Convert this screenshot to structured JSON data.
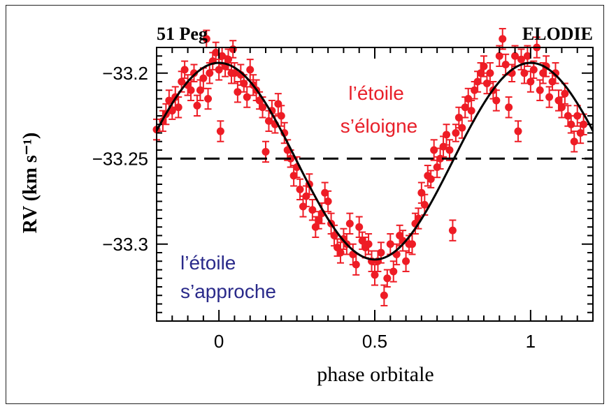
{
  "chart_data": {
    "type": "scatter",
    "title_left": "51 Peg",
    "title_right": "ELODIE",
    "xlabel": "phase orbitale",
    "ylabel": "RV (km s⁻¹)",
    "xlim": [
      -0.2,
      1.2
    ],
    "ylim": [
      -33.345,
      -33.185
    ],
    "x_ticks": [
      0,
      0.5,
      1
    ],
    "x_tick_labels": [
      "0",
      "0.5",
      "1"
    ],
    "y_ticks": [
      -33.2,
      -33.25,
      -33.3
    ],
    "y_tick_labels": [
      "−33.2",
      "−33.25",
      "−33.3"
    ],
    "reference_line": {
      "y": -33.25,
      "style": "dashed"
    },
    "fit": {
      "type": "sinusoid",
      "mean": -33.2515,
      "amplitude": 0.0575,
      "phase_of_max": 0.0,
      "color": "#000000"
    },
    "annotations": [
      {
        "text_lines": [
          "l’étoile",
          "s’éloigne"
        ],
        "color": "#e8202a"
      },
      {
        "text_lines": [
          "l’étoile",
          "s’approche"
        ],
        "color": "#2a2a8a"
      }
    ],
    "marker_color": "#ee1c25",
    "points": [
      [
        -0.2,
        -33.233,
        0.006
      ],
      [
        -0.18,
        -33.228,
        0.006
      ],
      [
        -0.17,
        -33.224,
        0.006
      ],
      [
        -0.16,
        -33.216,
        0.006
      ],
      [
        -0.15,
        -33.222,
        0.005
      ],
      [
        -0.14,
        -33.214,
        0.006
      ],
      [
        -0.13,
        -33.22,
        0.006
      ],
      [
        -0.12,
        -33.205,
        0.006
      ],
      [
        -0.11,
        -33.198,
        0.005
      ],
      [
        -0.1,
        -33.207,
        0.006
      ],
      [
        -0.09,
        -33.21,
        0.006
      ],
      [
        -0.08,
        -33.2,
        0.005
      ],
      [
        -0.07,
        -33.219,
        0.006
      ],
      [
        -0.06,
        -33.21,
        0.006
      ],
      [
        -0.05,
        -33.203,
        0.006
      ],
      [
        -0.04,
        -33.18,
        0.005
      ],
      [
        -0.035,
        -33.215,
        0.006
      ],
      [
        -0.03,
        -33.2,
        0.006
      ],
      [
        -0.02,
        -33.193,
        0.005
      ],
      [
        -0.01,
        -33.188,
        0.006
      ],
      [
        0.0,
        -33.198,
        0.006
      ],
      [
        0.005,
        -33.234,
        0.006
      ],
      [
        0.01,
        -33.19,
        0.005
      ],
      [
        0.02,
        -33.196,
        0.006
      ],
      [
        0.03,
        -33.192,
        0.006
      ],
      [
        0.04,
        -33.2,
        0.006
      ],
      [
        0.045,
        -33.186,
        0.005
      ],
      [
        0.05,
        -33.2,
        0.006
      ],
      [
        0.06,
        -33.211,
        0.006
      ],
      [
        0.07,
        -33.201,
        0.006
      ],
      [
        0.08,
        -33.206,
        0.005
      ],
      [
        0.09,
        -33.214,
        0.006
      ],
      [
        0.1,
        -33.198,
        0.006
      ],
      [
        0.11,
        -33.207,
        0.006
      ],
      [
        0.12,
        -33.21,
        0.006
      ],
      [
        0.13,
        -33.216,
        0.005
      ],
      [
        0.14,
        -33.22,
        0.006
      ],
      [
        0.15,
        -33.246,
        0.006
      ],
      [
        0.16,
        -33.228,
        0.006
      ],
      [
        0.17,
        -33.222,
        0.006
      ],
      [
        0.18,
        -33.23,
        0.005
      ],
      [
        0.19,
        -33.218,
        0.006
      ],
      [
        0.2,
        -33.225,
        0.006
      ],
      [
        0.21,
        -33.235,
        0.006
      ],
      [
        0.22,
        -33.245,
        0.006
      ],
      [
        0.23,
        -33.25,
        0.005
      ],
      [
        0.24,
        -33.26,
        0.006
      ],
      [
        0.25,
        -33.255,
        0.006
      ],
      [
        0.26,
        -33.268,
        0.006
      ],
      [
        0.27,
        -33.278,
        0.006
      ],
      [
        0.28,
        -33.272,
        0.006
      ],
      [
        0.29,
        -33.265,
        0.006
      ],
      [
        0.3,
        -33.28,
        0.006
      ],
      [
        0.31,
        -33.29,
        0.006
      ],
      [
        0.32,
        -33.286,
        0.005
      ],
      [
        0.33,
        -33.282,
        0.006
      ],
      [
        0.34,
        -33.27,
        0.006
      ],
      [
        0.35,
        -33.275,
        0.006
      ],
      [
        0.36,
        -33.288,
        0.006
      ],
      [
        0.37,
        -33.295,
        0.006
      ],
      [
        0.38,
        -33.302,
        0.005
      ],
      [
        0.39,
        -33.305,
        0.006
      ],
      [
        0.4,
        -33.297,
        0.006
      ],
      [
        0.41,
        -33.3,
        0.006
      ],
      [
        0.42,
        -33.288,
        0.006
      ],
      [
        0.43,
        -33.306,
        0.006
      ],
      [
        0.44,
        -33.312,
        0.006
      ],
      [
        0.45,
        -33.29,
        0.006
      ],
      [
        0.46,
        -33.298,
        0.005
      ],
      [
        0.47,
        -33.302,
        0.006
      ],
      [
        0.48,
        -33.3,
        0.006
      ],
      [
        0.49,
        -33.31,
        0.006
      ],
      [
        0.5,
        -33.318,
        0.006
      ],
      [
        0.51,
        -33.31,
        0.006
      ],
      [
        0.52,
        -33.305,
        0.006
      ],
      [
        0.53,
        -33.33,
        0.006
      ],
      [
        0.54,
        -33.32,
        0.005
      ],
      [
        0.55,
        -33.3,
        0.006
      ],
      [
        0.56,
        -33.316,
        0.006
      ],
      [
        0.57,
        -33.306,
        0.006
      ],
      [
        0.58,
        -33.295,
        0.006
      ],
      [
        0.59,
        -33.298,
        0.006
      ],
      [
        0.6,
        -33.31,
        0.006
      ],
      [
        0.61,
        -33.3,
        0.005
      ],
      [
        0.62,
        -33.3,
        0.006
      ],
      [
        0.63,
        -33.288,
        0.006
      ],
      [
        0.64,
        -33.285,
        0.006
      ],
      [
        0.65,
        -33.27,
        0.006
      ],
      [
        0.66,
        -33.277,
        0.006
      ],
      [
        0.67,
        -33.26,
        0.006
      ],
      [
        0.68,
        -33.262,
        0.005
      ],
      [
        0.69,
        -33.245,
        0.006
      ],
      [
        0.7,
        -33.255,
        0.006
      ],
      [
        0.71,
        -33.25,
        0.006
      ],
      [
        0.72,
        -33.243,
        0.006
      ],
      [
        0.73,
        -33.236,
        0.006
      ],
      [
        0.74,
        -33.245,
        0.006
      ],
      [
        0.75,
        -33.292,
        0.006
      ],
      [
        0.76,
        -33.235,
        0.005
      ],
      [
        0.77,
        -33.226,
        0.006
      ],
      [
        0.78,
        -33.232,
        0.006
      ],
      [
        0.79,
        -33.22,
        0.006
      ],
      [
        0.8,
        -33.215,
        0.006
      ],
      [
        0.81,
        -33.222,
        0.006
      ],
      [
        0.82,
        -33.21,
        0.005
      ],
      [
        0.83,
        -33.205,
        0.006
      ],
      [
        0.84,
        -33.2,
        0.006
      ],
      [
        0.85,
        -33.196,
        0.006
      ],
      [
        0.86,
        -33.206,
        0.006
      ],
      [
        0.87,
        -33.2,
        0.006
      ],
      [
        0.88,
        -33.21,
        0.005
      ],
      [
        0.89,
        -33.216,
        0.006
      ],
      [
        0.9,
        -33.19,
        0.006
      ],
      [
        0.91,
        -33.18,
        0.006
      ],
      [
        0.92,
        -33.195,
        0.006
      ],
      [
        0.93,
        -33.22,
        0.006
      ],
      [
        0.94,
        -33.2,
        0.005
      ],
      [
        0.95,
        -33.19,
        0.006
      ],
      [
        0.96,
        -33.234,
        0.006
      ],
      [
        0.97,
        -33.192,
        0.006
      ],
      [
        0.98,
        -33.2,
        0.006
      ],
      [
        0.99,
        -33.19,
        0.006
      ],
      [
        1.0,
        -33.205,
        0.006
      ],
      [
        1.01,
        -33.198,
        0.005
      ],
      [
        1.02,
        -33.185,
        0.006
      ],
      [
        1.03,
        -33.21,
        0.006
      ],
      [
        1.04,
        -33.2,
        0.006
      ],
      [
        1.05,
        -33.196,
        0.006
      ],
      [
        1.06,
        -33.214,
        0.006
      ],
      [
        1.07,
        -33.205,
        0.005
      ],
      [
        1.08,
        -33.2,
        0.006
      ],
      [
        1.09,
        -33.216,
        0.006
      ],
      [
        1.1,
        -33.22,
        0.006
      ],
      [
        1.11,
        -33.212,
        0.006
      ],
      [
        1.12,
        -33.225,
        0.006
      ],
      [
        1.13,
        -33.23,
        0.005
      ],
      [
        1.14,
        -33.24,
        0.006
      ],
      [
        1.15,
        -33.225,
        0.006
      ],
      [
        1.16,
        -33.235,
        0.006
      ],
      [
        1.17,
        -33.23,
        0.006
      ]
    ]
  }
}
